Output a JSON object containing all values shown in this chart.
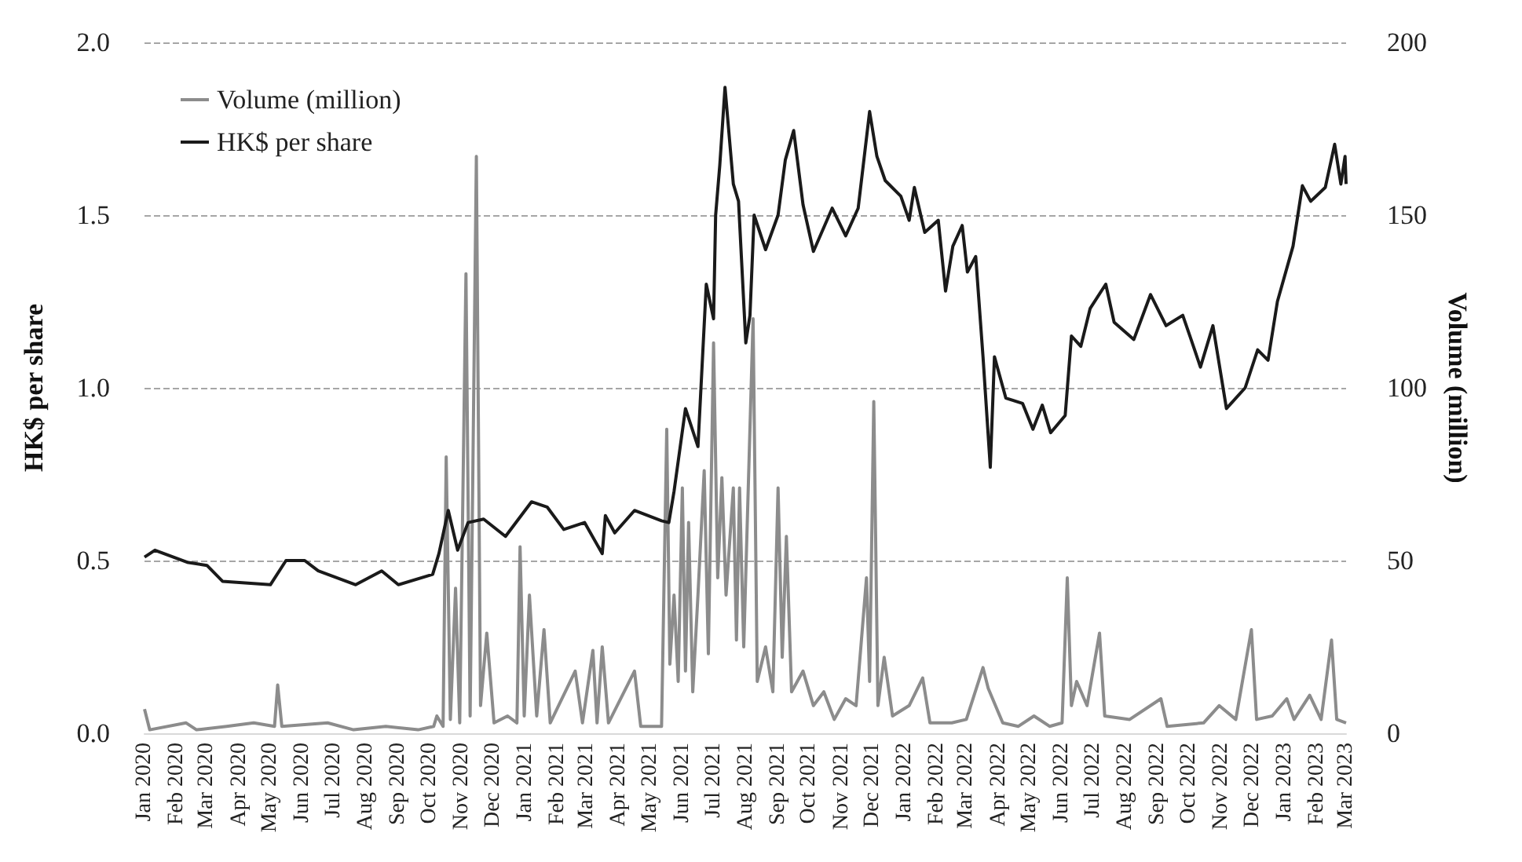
{
  "chart_data": {
    "type": "line",
    "ylabel": "HK$ per share",
    "y2label": "Volume (million)",
    "xlim": [
      "2020-01-01",
      "2023-03-01"
    ],
    "xticks": [
      {
        "value": "2020-01-01",
        "label": "Jan 2020"
      },
      {
        "value": "2020-02-01",
        "label": "Feb 2020"
      },
      {
        "value": "2020-03-01",
        "label": "Mar 2020"
      },
      {
        "value": "2020-04-01",
        "label": "Apr 2020"
      },
      {
        "value": "2020-05-01",
        "label": "May 2020"
      },
      {
        "value": "2020-06-01",
        "label": "Jun 2020"
      },
      {
        "value": "2020-07-01",
        "label": "Jul 2020"
      },
      {
        "value": "2020-08-01",
        "label": "Aug 2020"
      },
      {
        "value": "2020-09-01",
        "label": "Sep 2020"
      },
      {
        "value": "2020-10-01",
        "label": "Oct 2020"
      },
      {
        "value": "2020-11-01",
        "label": "Nov 2020"
      },
      {
        "value": "2020-12-01",
        "label": "Dec 2020"
      },
      {
        "value": "2021-01-01",
        "label": "Jan 2021"
      },
      {
        "value": "2021-02-01",
        "label": "Feb 2021"
      },
      {
        "value": "2021-03-01",
        "label": "Mar 2021"
      },
      {
        "value": "2021-04-01",
        "label": "Apr 2021"
      },
      {
        "value": "2021-05-01",
        "label": "May 2021"
      },
      {
        "value": "2021-06-01",
        "label": "Jun 2021"
      },
      {
        "value": "2021-07-01",
        "label": "Jul 2021"
      },
      {
        "value": "2021-08-01",
        "label": "Aug 2021"
      },
      {
        "value": "2021-09-01",
        "label": "Sep 2021"
      },
      {
        "value": "2021-10-01",
        "label": "Oct 2021"
      },
      {
        "value": "2021-11-01",
        "label": "Nov 2021"
      },
      {
        "value": "2021-12-01",
        "label": "Dec 2021"
      },
      {
        "value": "2022-01-01",
        "label": "Jan 2022"
      },
      {
        "value": "2022-02-01",
        "label": "Feb 2022"
      },
      {
        "value": "2022-03-01",
        "label": "Mar 2022"
      },
      {
        "value": "2022-04-01",
        "label": "Apr 2022"
      },
      {
        "value": "2022-05-01",
        "label": "May 2022"
      },
      {
        "value": "2022-06-01",
        "label": "Jun 2022"
      },
      {
        "value": "2022-07-01",
        "label": "Jul 2022"
      },
      {
        "value": "2022-08-01",
        "label": "Aug 2022"
      },
      {
        "value": "2022-09-01",
        "label": "Sep 2022"
      },
      {
        "value": "2022-10-01",
        "label": "Oct 2022"
      },
      {
        "value": "2022-11-01",
        "label": "Nov 2022"
      },
      {
        "value": "2022-12-01",
        "label": "Dec 2022"
      },
      {
        "value": "2023-01-01",
        "label": "Jan 2023"
      },
      {
        "value": "2023-02-01",
        "label": "Feb 2023"
      },
      {
        "value": "2023-03-01",
        "label": "Mar 2023"
      }
    ],
    "ylim": [
      0,
      2
    ],
    "yticks": [
      {
        "value": 0,
        "label": "0.0"
      },
      0.5,
      {
        "value": 1,
        "label": "1.0"
      },
      1.5,
      {
        "value": 2,
        "label": "2.0"
      }
    ],
    "y2lim": [
      0,
      200
    ],
    "y2ticks": [
      0,
      50,
      100,
      150,
      200
    ],
    "grid": "y",
    "legend": "top left",
    "marker": "none",
    "series": [
      {
        "name": "Volume (million)",
        "color": "#8c8c8c",
        "axis": "y2",
        "x": [
          "2020-01-01",
          "2020-01-06",
          "2020-02-10",
          "2020-02-20",
          "2020-03-20",
          "2020-04-15",
          "2020-05-05",
          "2020-05-08",
          "2020-05-12",
          "2020-06-25",
          "2020-07-20",
          "2020-08-20",
          "2020-09-20",
          "2020-10-05",
          "2020-10-08",
          "2020-10-14",
          "2020-10-17",
          "2020-10-21",
          "2020-10-26",
          "2020-10-30",
          "2020-11-05",
          "2020-11-09",
          "2020-11-15",
          "2020-11-19",
          "2020-11-25",
          "2020-12-02",
          "2020-12-15",
          "2020-12-24",
          "2020-12-27",
          "2020-12-31",
          "2021-01-05",
          "2021-01-12",
          "2021-01-19",
          "2021-01-25",
          "2021-02-18",
          "2021-02-25",
          "2021-03-07",
          "2021-03-11",
          "2021-03-16",
          "2021-03-22",
          "2021-04-16",
          "2021-04-22",
          "2021-05-12",
          "2021-05-17",
          "2021-05-20",
          "2021-05-24",
          "2021-05-28",
          "2021-06-01",
          "2021-06-04",
          "2021-06-07",
          "2021-06-11",
          "2021-06-16",
          "2021-06-22",
          "2021-06-26",
          "2021-07-01",
          "2021-07-05",
          "2021-07-09",
          "2021-07-13",
          "2021-07-20",
          "2021-07-23",
          "2021-07-26",
          "2021-07-30",
          "2021-08-08",
          "2021-08-12",
          "2021-08-20",
          "2021-08-27",
          "2021-09-01",
          "2021-09-05",
          "2021-09-09",
          "2021-09-14",
          "2021-09-25",
          "2021-10-05",
          "2021-10-15",
          "2021-10-25",
          "2021-11-05",
          "2021-11-15",
          "2021-11-25",
          "2021-11-28",
          "2021-12-02",
          "2021-12-06",
          "2021-12-12",
          "2021-12-20",
          "2022-01-05",
          "2022-01-18",
          "2022-01-25",
          "2022-02-15",
          "2022-03-01",
          "2022-03-17",
          "2022-03-22",
          "2022-04-05",
          "2022-04-20",
          "2022-05-05",
          "2022-05-20",
          "2022-06-01",
          "2022-06-06",
          "2022-06-10",
          "2022-06-15",
          "2022-06-25",
          "2022-07-07",
          "2022-07-12",
          "2022-08-05",
          "2022-09-04",
          "2022-09-10",
          "2022-10-15",
          "2022-10-30",
          "2022-11-15",
          "2022-11-30",
          "2022-12-05",
          "2022-12-20",
          "2023-01-03",
          "2023-01-10",
          "2023-01-25",
          "2023-02-05",
          "2023-02-15",
          "2023-02-20",
          "2023-03-01"
        ],
        "values": [
          7,
          1,
          3,
          1,
          2,
          3,
          2,
          14,
          2,
          3,
          1,
          2,
          1,
          2,
          5,
          2,
          80,
          4,
          42,
          3,
          133,
          5,
          167,
          8,
          29,
          3,
          5,
          3,
          54,
          5,
          40,
          5,
          30,
          3,
          18,
          3,
          24,
          3,
          25,
          3,
          18,
          2,
          2,
          88,
          20,
          40,
          15,
          71,
          18,
          61,
          12,
          40,
          76,
          23,
          113,
          45,
          74,
          40,
          71,
          27,
          71,
          25,
          120,
          15,
          25,
          12,
          71,
          22,
          57,
          12,
          18,
          8,
          12,
          4,
          10,
          8,
          45,
          15,
          96,
          8,
          22,
          5,
          8,
          16,
          3,
          3,
          4,
          19,
          13,
          3,
          2,
          5,
          2,
          3,
          45,
          8,
          15,
          8,
          29,
          5,
          4,
          10,
          2,
          3,
          8,
          4,
          30,
          4,
          5,
          10,
          4,
          11,
          4,
          27,
          4,
          3
        ]
      },
      {
        "name": "HK$ per share",
        "color": "#1a1a1a",
        "axis": "y",
        "x": [
          "2020-01-01",
          "2020-01-11",
          "2020-02-11",
          "2020-03-01",
          "2020-03-16",
          "2020-05-01",
          "2020-05-16",
          "2020-06-03",
          "2020-06-16",
          "2020-07-22",
          "2020-08-16",
          "2020-09-01",
          "2020-10-04",
          "2020-10-10",
          "2020-10-19",
          "2020-10-28",
          "2020-11-07",
          "2020-11-22",
          "2020-12-13",
          "2021-01-07",
          "2021-01-22",
          "2021-02-07",
          "2021-02-27",
          "2021-03-16",
          "2021-03-19",
          "2021-03-28",
          "2021-04-16",
          "2021-05-12",
          "2021-05-19",
          "2021-05-24",
          "2021-06-04",
          "2021-06-16",
          "2021-06-24",
          "2021-07-01",
          "2021-07-03",
          "2021-07-07",
          "2021-07-12",
          "2021-07-20",
          "2021-07-25",
          "2021-08-01",
          "2021-08-05",
          "2021-08-09",
          "2021-08-20",
          "2021-09-01",
          "2021-09-08",
          "2021-09-16",
          "2021-09-25",
          "2021-10-05",
          "2021-10-23",
          "2021-11-05",
          "2021-11-17",
          "2021-11-28",
          "2021-12-05",
          "2021-12-13",
          "2021-12-28",
          "2022-01-05",
          "2022-01-10",
          "2022-01-20",
          "2022-02-02",
          "2022-02-09",
          "2022-02-16",
          "2022-02-25",
          "2022-03-02",
          "2022-03-10",
          "2022-03-17",
          "2022-03-24",
          "2022-03-28",
          "2022-04-08",
          "2022-04-24",
          "2022-05-04",
          "2022-05-13",
          "2022-05-21",
          "2022-06-04",
          "2022-06-10",
          "2022-06-19",
          "2022-06-28",
          "2022-07-13",
          "2022-07-21",
          "2022-08-09",
          "2022-08-25",
          "2022-09-09",
          "2022-09-25",
          "2022-10-03",
          "2022-10-12",
          "2022-10-24",
          "2022-11-06",
          "2022-11-24",
          "2022-12-06",
          "2022-12-16",
          "2022-12-25",
          "2023-01-09",
          "2023-01-18",
          "2023-01-26",
          "2023-02-09",
          "2023-02-18",
          "2023-02-24",
          "2023-02-28",
          "2023-03-01"
        ],
        "values": [
          0.51,
          0.53,
          0.495,
          0.486,
          0.44,
          0.43,
          0.5,
          0.5,
          0.47,
          0.43,
          0.47,
          0.43,
          0.46,
          0.52,
          0.645,
          0.53,
          0.61,
          0.62,
          0.57,
          0.67,
          0.655,
          0.59,
          0.61,
          0.52,
          0.63,
          0.58,
          0.645,
          0.615,
          0.61,
          0.7,
          0.94,
          0.83,
          1.3,
          1.2,
          1.5,
          1.645,
          1.87,
          1.59,
          1.54,
          1.13,
          1.21,
          1.5,
          1.4,
          1.5,
          1.66,
          1.745,
          1.53,
          1.395,
          1.52,
          1.44,
          1.52,
          1.8,
          1.67,
          1.6,
          1.555,
          1.485,
          1.58,
          1.45,
          1.485,
          1.28,
          1.41,
          1.47,
          1.335,
          1.38,
          1.09,
          0.77,
          1.09,
          0.97,
          0.955,
          0.88,
          0.95,
          0.87,
          0.92,
          1.15,
          1.12,
          1.23,
          1.3,
          1.19,
          1.14,
          1.27,
          1.18,
          1.21,
          1.14,
          1.06,
          1.18,
          0.94,
          1.0,
          1.11,
          1.08,
          1.25,
          1.41,
          1.585,
          1.54,
          1.58,
          1.705,
          1.59,
          1.67,
          1.59
        ]
      }
    ]
  }
}
